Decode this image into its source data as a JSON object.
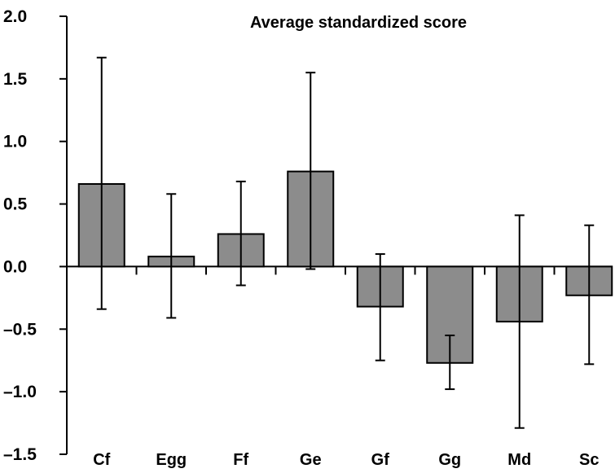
{
  "chart_data": {
    "type": "bar",
    "title": "Average standardized score",
    "xlabel": "",
    "ylabel": "",
    "ylim": [
      -1.5,
      2.0
    ],
    "yticks": [
      2.0,
      1.5,
      1.0,
      0.5,
      0.0,
      -0.5,
      -1.0,
      -1.5
    ],
    "ytick_labels": [
      "2.0",
      "1.5",
      "1.0",
      "0.5",
      "0.0",
      "–0.5",
      "–1.0",
      "–1.5"
    ],
    "categories": [
      "Cf",
      "Egg",
      "Ff",
      "Ge",
      "Gf",
      "Gg",
      "Md",
      "Sc"
    ],
    "values": [
      0.66,
      0.08,
      0.26,
      0.76,
      -0.32,
      -0.77,
      -0.44,
      -0.23
    ],
    "error_upper": [
      1.67,
      0.58,
      0.68,
      1.55,
      0.1,
      -0.55,
      0.41,
      0.33
    ],
    "error_lower": [
      -0.34,
      -0.41,
      -0.15,
      -0.02,
      -0.75,
      -0.98,
      -1.29,
      -0.78
    ],
    "bar_color": "#8c8c8c",
    "edge_color": "#000000",
    "grid": false,
    "legend": "none"
  }
}
